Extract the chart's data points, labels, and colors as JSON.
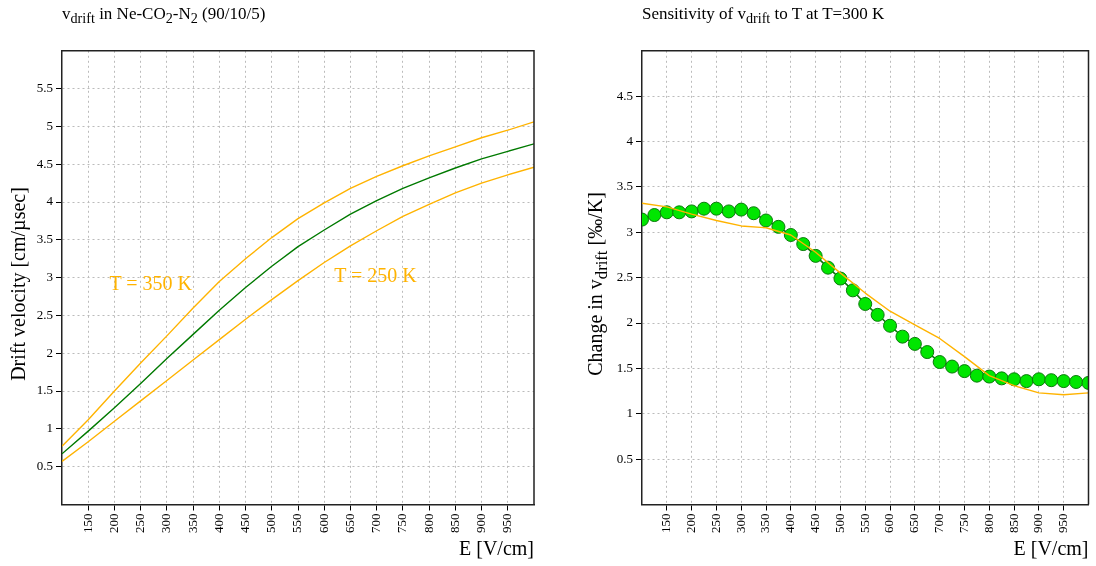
{
  "chart_data": [
    {
      "type": "line",
      "title": "v$_{drift}$ in Ne-CO$_{2}$-N$_{2}$ (90/10/5)",
      "xlabel": "E [V/cm]",
      "ylabel": "Drift velocity [cm/µsec]",
      "xlim": [
        100,
        1000
      ],
      "xticks": [
        150,
        200,
        250,
        300,
        350,
        400,
        450,
        500,
        550,
        600,
        650,
        700,
        750,
        800,
        850,
        900,
        950
      ],
      "ylim": [
        0,
        6
      ],
      "yticks": [
        0.5,
        1,
        1.5,
        2,
        2.5,
        3,
        3.5,
        4,
        4.5,
        5,
        5.5
      ],
      "grid": true,
      "marker": "none",
      "x": [
        100,
        150,
        200,
        250,
        300,
        350,
        400,
        450,
        500,
        550,
        600,
        650,
        700,
        750,
        800,
        850,
        900,
        950,
        1000
      ],
      "series": [
        {
          "name": "T = 350 K",
          "color": "#ffb300",
          "values": [
            0.77,
            1.12,
            1.5,
            1.87,
            2.23,
            2.6,
            2.95,
            3.25,
            3.53,
            3.78,
            3.99,
            4.18,
            4.34,
            4.48,
            4.61,
            4.73,
            4.85,
            4.95,
            5.06
          ]
        },
        {
          "color": "#007a00",
          "values": [
            0.67,
            0.97,
            1.28,
            1.6,
            1.93,
            2.25,
            2.57,
            2.87,
            3.15,
            3.41,
            3.63,
            3.84,
            4.02,
            4.18,
            4.32,
            4.45,
            4.57,
            4.67,
            4.77
          ]
        },
        {
          "name": "T = 250 K",
          "color": "#ffb300",
          "values": [
            0.57,
            0.83,
            1.1,
            1.37,
            1.64,
            1.91,
            2.18,
            2.45,
            2.71,
            2.96,
            3.2,
            3.42,
            3.62,
            3.81,
            3.97,
            4.12,
            4.25,
            4.36,
            4.46
          ]
        }
      ]
    },
    {
      "type": "line",
      "title": "Sensitivity of v$_{drift}$ to T at T=300 K",
      "xlabel": "E [V/cm]",
      "ylabel": "Change in v$_{drift}$ [‰/K]",
      "xlim": [
        100,
        1000
      ],
      "xticks": [
        150,
        200,
        250,
        300,
        350,
        400,
        450,
        500,
        550,
        600,
        650,
        700,
        750,
        800,
        850,
        900,
        950
      ],
      "ylim": [
        0,
        5
      ],
      "yticks": [
        0.5,
        1,
        1.5,
        2,
        2.5,
        3,
        3.5,
        4,
        4.5
      ],
      "grid": true,
      "series": [
        {
          "color": "#ffb300",
          "marker": "none",
          "x": [
            100,
            150,
            200,
            250,
            300,
            350,
            400,
            450,
            500,
            550,
            600,
            650,
            700,
            750,
            800,
            850,
            900,
            950,
            1000
          ],
          "values": [
            3.32,
            3.28,
            3.2,
            3.13,
            3.07,
            3.05,
            2.97,
            2.78,
            2.55,
            2.33,
            2.13,
            1.98,
            1.83,
            1.63,
            1.42,
            1.31,
            1.23,
            1.21,
            1.23
          ]
        },
        {
          "color": "#00e600",
          "marker": "circle",
          "x": [
            100,
            125,
            150,
            175,
            200,
            225,
            250,
            275,
            300,
            325,
            350,
            375,
            400,
            425,
            450,
            475,
            500,
            525,
            550,
            575,
            600,
            625,
            650,
            675,
            700,
            725,
            750,
            775,
            800,
            825,
            850,
            875,
            900,
            925,
            950,
            975,
            1000
          ],
          "values": [
            3.14,
            3.19,
            3.22,
            3.22,
            3.23,
            3.26,
            3.26,
            3.23,
            3.25,
            3.21,
            3.13,
            3.06,
            2.97,
            2.87,
            2.74,
            2.61,
            2.49,
            2.36,
            2.21,
            2.09,
            1.97,
            1.85,
            1.77,
            1.68,
            1.57,
            1.52,
            1.47,
            1.42,
            1.41,
            1.39,
            1.38,
            1.36,
            1.38,
            1.37,
            1.36,
            1.35,
            1.34
          ]
        }
      ]
    }
  ]
}
